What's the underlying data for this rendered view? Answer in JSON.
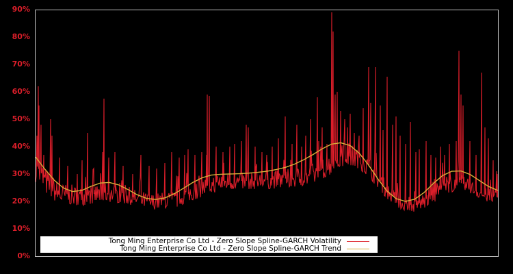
{
  "chart_data": {
    "type": "line",
    "title": "",
    "xlabel": "",
    "ylabel": "",
    "ylim": [
      0,
      90
    ],
    "yticks": [
      "0%",
      "10%",
      "20%",
      "30%",
      "40%",
      "50%",
      "60%",
      "70%",
      "80%",
      "90%"
    ],
    "ytick_values": [
      0,
      10,
      20,
      30,
      40,
      50,
      60,
      70,
      80,
      90
    ],
    "grid": false,
    "legend_position": "lower-left-inside",
    "background": "#000000",
    "axis_color": "#c0c0c0",
    "tick_color": "#dc1e2a",
    "series": [
      {
        "name": "Tong Ming Enterprise Co Ltd - Zero Slope Spline-GARCH Volatility",
        "color": "#dc1e2a",
        "floor": [
          [
            0.0,
            27
          ],
          [
            0.02,
            23
          ],
          [
            0.05,
            19
          ],
          [
            0.1,
            18.5
          ],
          [
            0.15,
            20
          ],
          [
            0.2,
            19
          ],
          [
            0.25,
            17
          ],
          [
            0.3,
            17.5
          ],
          [
            0.35,
            21
          ],
          [
            0.4,
            24
          ],
          [
            0.45,
            24.5
          ],
          [
            0.5,
            24.5
          ],
          [
            0.55,
            25
          ],
          [
            0.6,
            26
          ],
          [
            0.63,
            29
          ],
          [
            0.67,
            33
          ],
          [
            0.7,
            32
          ],
          [
            0.73,
            27
          ],
          [
            0.76,
            21
          ],
          [
            0.79,
            17
          ],
          [
            0.82,
            16
          ],
          [
            0.85,
            18
          ],
          [
            0.88,
            22
          ],
          [
            0.91,
            24
          ],
          [
            0.94,
            23
          ],
          [
            0.97,
            20
          ],
          [
            1.0,
            19
          ]
        ],
        "body": [
          [
            0.0,
            40
          ],
          [
            0.02,
            33
          ],
          [
            0.05,
            27
          ],
          [
            0.1,
            25.5
          ],
          [
            0.15,
            27
          ],
          [
            0.2,
            25
          ],
          [
            0.25,
            23
          ],
          [
            0.3,
            24
          ],
          [
            0.35,
            28
          ],
          [
            0.4,
            31
          ],
          [
            0.45,
            30.5
          ],
          [
            0.5,
            31
          ],
          [
            0.55,
            32
          ],
          [
            0.6,
            34
          ],
          [
            0.63,
            37
          ],
          [
            0.67,
            42
          ],
          [
            0.7,
            40
          ],
          [
            0.73,
            35
          ],
          [
            0.76,
            27
          ],
          [
            0.79,
            22
          ],
          [
            0.82,
            21
          ],
          [
            0.85,
            25
          ],
          [
            0.88,
            29
          ],
          [
            0.91,
            30.5
          ],
          [
            0.94,
            28
          ],
          [
            0.97,
            25
          ],
          [
            1.0,
            24
          ]
        ],
        "spikes": [
          [
            0.003,
            44
          ],
          [
            0.006,
            62
          ],
          [
            0.008,
            55
          ],
          [
            0.012,
            48
          ],
          [
            0.018,
            37
          ],
          [
            0.032,
            50
          ],
          [
            0.036,
            44
          ],
          [
            0.052,
            36
          ],
          [
            0.07,
            33
          ],
          [
            0.09,
            30
          ],
          [
            0.1,
            35
          ],
          [
            0.112,
            45
          ],
          [
            0.125,
            32
          ],
          [
            0.145,
            38
          ],
          [
            0.148,
            57.5
          ],
          [
            0.158,
            36
          ],
          [
            0.172,
            38
          ],
          [
            0.19,
            33
          ],
          [
            0.21,
            30
          ],
          [
            0.228,
            37
          ],
          [
            0.245,
            33
          ],
          [
            0.262,
            32
          ],
          [
            0.28,
            34
          ],
          [
            0.295,
            38
          ],
          [
            0.31,
            36
          ],
          [
            0.322,
            37
          ],
          [
            0.33,
            39
          ],
          [
            0.345,
            37
          ],
          [
            0.36,
            38
          ],
          [
            0.37,
            37
          ],
          [
            0.372,
            59
          ],
          [
            0.376,
            58.5
          ],
          [
            0.39,
            40
          ],
          [
            0.405,
            38
          ],
          [
            0.42,
            40
          ],
          [
            0.43,
            41
          ],
          [
            0.445,
            42
          ],
          [
            0.455,
            48
          ],
          [
            0.46,
            47
          ],
          [
            0.475,
            40
          ],
          [
            0.49,
            38
          ],
          [
            0.5,
            37
          ],
          [
            0.512,
            40
          ],
          [
            0.525,
            43
          ],
          [
            0.54,
            51
          ],
          [
            0.555,
            41
          ],
          [
            0.565,
            48
          ],
          [
            0.575,
            40
          ],
          [
            0.585,
            44
          ],
          [
            0.595,
            50
          ],
          [
            0.61,
            58
          ],
          [
            0.612,
            42
          ],
          [
            0.62,
            47
          ],
          [
            0.63,
            41
          ],
          [
            0.64,
            89
          ],
          [
            0.643,
            82
          ],
          [
            0.648,
            59
          ],
          [
            0.652,
            60
          ],
          [
            0.66,
            53
          ],
          [
            0.668,
            50
          ],
          [
            0.675,
            47
          ],
          [
            0.68,
            52
          ],
          [
            0.69,
            45
          ],
          [
            0.7,
            44
          ],
          [
            0.708,
            54
          ],
          [
            0.72,
            69
          ],
          [
            0.725,
            56
          ],
          [
            0.735,
            69
          ],
          [
            0.745,
            55
          ],
          [
            0.752,
            46
          ],
          [
            0.76,
            65.5
          ],
          [
            0.772,
            48
          ],
          [
            0.78,
            51
          ],
          [
            0.788,
            44
          ],
          [
            0.8,
            41
          ],
          [
            0.81,
            49
          ],
          [
            0.822,
            38
          ],
          [
            0.83,
            39
          ],
          [
            0.845,
            42
          ],
          [
            0.855,
            37
          ],
          [
            0.865,
            36
          ],
          [
            0.875,
            40
          ],
          [
            0.885,
            37
          ],
          [
            0.895,
            41
          ],
          [
            0.91,
            42
          ],
          [
            0.916,
            75
          ],
          [
            0.92,
            59
          ],
          [
            0.925,
            55
          ],
          [
            0.94,
            42
          ],
          [
            0.952,
            37
          ],
          [
            0.965,
            67
          ],
          [
            0.972,
            47
          ],
          [
            0.98,
            43
          ],
          [
            0.99,
            35
          ],
          [
            0.997,
            31
          ],
          [
            0.999,
            30
          ]
        ]
      },
      {
        "name": "Tong Ming Enterprise Co Ltd - Zero Slope Spline-GARCH Trend",
        "color": "#d8b03a",
        "points": [
          [
            0.0,
            36.2
          ],
          [
            0.02,
            31.8
          ],
          [
            0.04,
            27.8
          ],
          [
            0.06,
            24.9
          ],
          [
            0.08,
            23.6
          ],
          [
            0.1,
            24.0
          ],
          [
            0.12,
            25.5
          ],
          [
            0.14,
            26.7
          ],
          [
            0.16,
            26.9
          ],
          [
            0.18,
            26.0
          ],
          [
            0.2,
            24.3
          ],
          [
            0.22,
            22.4
          ],
          [
            0.24,
            21.1
          ],
          [
            0.26,
            20.7
          ],
          [
            0.28,
            21.3
          ],
          [
            0.3,
            22.8
          ],
          [
            0.32,
            24.8
          ],
          [
            0.34,
            26.9
          ],
          [
            0.36,
            28.6
          ],
          [
            0.38,
            29.6
          ],
          [
            0.4,
            29.9
          ],
          [
            0.42,
            30.0
          ],
          [
            0.44,
            30.1
          ],
          [
            0.46,
            30.3
          ],
          [
            0.48,
            30.6
          ],
          [
            0.5,
            31.0
          ],
          [
            0.52,
            31.6
          ],
          [
            0.54,
            32.4
          ],
          [
            0.56,
            33.6
          ],
          [
            0.58,
            35.2
          ],
          [
            0.6,
            37.1
          ],
          [
            0.62,
            39.2
          ],
          [
            0.64,
            40.9
          ],
          [
            0.66,
            41.4
          ],
          [
            0.68,
            40.4
          ],
          [
            0.7,
            37.6
          ],
          [
            0.72,
            33.3
          ],
          [
            0.74,
            28.3
          ],
          [
            0.76,
            23.8
          ],
          [
            0.78,
            21.0
          ],
          [
            0.8,
            20.0
          ],
          [
            0.82,
            20.8
          ],
          [
            0.84,
            23.2
          ],
          [
            0.86,
            26.5
          ],
          [
            0.88,
            29.4
          ],
          [
            0.9,
            31.0
          ],
          [
            0.92,
            31.1
          ],
          [
            0.94,
            29.8
          ],
          [
            0.96,
            27.6
          ],
          [
            0.98,
            25.4
          ],
          [
            1.0,
            24.0
          ]
        ]
      }
    ]
  },
  "legend": {
    "entries": [
      {
        "label": "Tong Ming Enterprise Co Ltd - Zero Slope Spline-GARCH Volatility",
        "color": "#e0343c"
      },
      {
        "label": "Tong Ming Enterprise Co Ltd - Zero Slope Spline-GARCH Trend",
        "color": "#d4b03c"
      }
    ]
  }
}
